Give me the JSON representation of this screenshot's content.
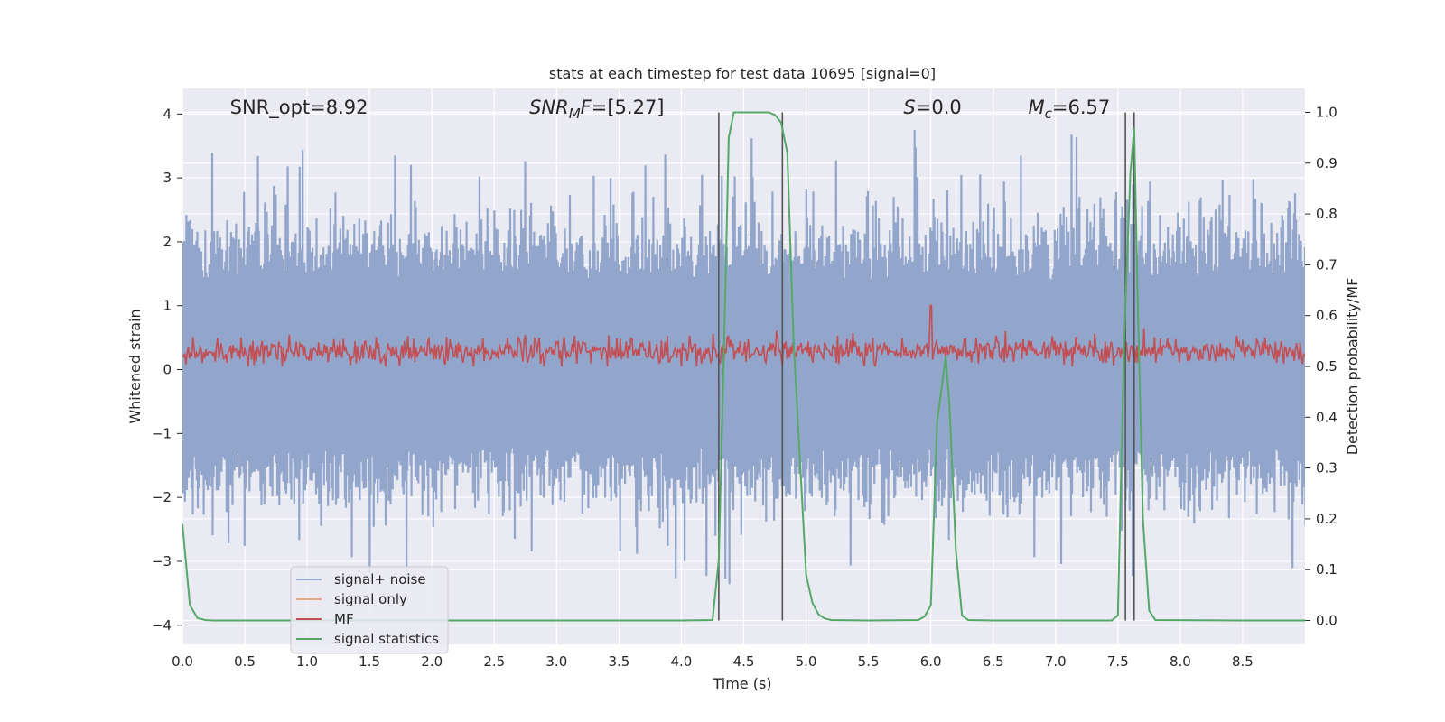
{
  "chart_data": {
    "type": "line",
    "title": "stats at each timestep for test data 10695 [signal=0]",
    "xlabel": "Time (s)",
    "ylabel": "Whitened strain",
    "ylabel_right": "Detection probability/MF",
    "xlim": [
      0,
      9
    ],
    "ylim": [
      -4.3,
      4.4
    ],
    "ylim_right": [
      -0.047,
      1.047
    ],
    "xticks": [
      0.0,
      0.5,
      1.0,
      1.5,
      2.0,
      2.5,
      3.0,
      3.5,
      4.0,
      4.5,
      5.0,
      5.5,
      6.0,
      6.5,
      7.0,
      7.5,
      8.0,
      8.5
    ],
    "xtick_labels": [
      "0.0",
      "0.5",
      "1.0",
      "1.5",
      "2.0",
      "2.5",
      "3.0",
      "3.5",
      "4.0",
      "4.5",
      "5.0",
      "5.5",
      "6.0",
      "6.5",
      "7.0",
      "7.5",
      "8.0",
      "8.5"
    ],
    "yticks": [
      -4,
      -3,
      -2,
      -1,
      0,
      1,
      2,
      3,
      4
    ],
    "ytick_labels": [
      "−4",
      "−3",
      "−2",
      "−1",
      "0",
      "1",
      "2",
      "3",
      "4"
    ],
    "yticks_right": [
      0.0,
      0.1,
      0.2,
      0.3,
      0.4,
      0.5,
      0.6,
      0.7,
      0.8,
      0.9,
      1.0
    ],
    "ytick_labels_right": [
      "0.0",
      "0.1",
      "0.2",
      "0.3",
      "0.4",
      "0.5",
      "0.6",
      "0.7",
      "0.8",
      "0.9",
      "1.0"
    ],
    "grid": true,
    "legend_position": "lower-left",
    "annotations": [
      {
        "text": "SNR_opt=8.92",
        "x": 0.2,
        "y": 4.1
      },
      {
        "text": "SNR_MF=[5.27]",
        "x": 2.6,
        "y": 4.1
      },
      {
        "text": "S=0.0",
        "x": 5.6,
        "y": 4.1
      },
      {
        "text": "M_c=6.57",
        "x": 6.6,
        "y": 4.1
      }
    ],
    "vertical_lines": [
      4.3,
      4.81,
      7.56,
      7.63
    ],
    "series": [
      {
        "name": "signal+ noise",
        "color": "#92a6cc",
        "axis": "left",
        "description": "whitened strain noise, approx. N(0,0.6) with spikes up to about 4 and down to -4"
      },
      {
        "name": "signal only",
        "color": "#e8a888",
        "axis": "left",
        "values": []
      },
      {
        "name": "MF",
        "color": "#c44e52",
        "axis": "right",
        "level": 0.53,
        "spike": {
          "x": 6.0,
          "y": 0.62
        }
      },
      {
        "name": "signal statistics",
        "color": "#55a868",
        "axis": "right",
        "x": [
          0.0,
          0.06,
          0.12,
          0.18,
          0.25,
          0.35,
          0.5,
          1.0,
          2.0,
          3.0,
          4.0,
          4.25,
          4.3,
          4.35,
          4.38,
          4.42,
          4.5,
          4.6,
          4.7,
          4.75,
          4.8,
          4.85,
          4.9,
          5.0,
          5.05,
          5.1,
          5.15,
          5.2,
          5.5,
          5.9,
          5.95,
          6.0,
          6.05,
          6.12,
          6.15,
          6.2,
          6.25,
          6.3,
          6.5,
          7.0,
          7.45,
          7.5,
          7.55,
          7.6,
          7.63,
          7.66,
          7.7,
          7.75,
          7.8,
          8.5,
          9.0
        ],
        "y": [
          0.19,
          0.03,
          0.005,
          0.001,
          0.0,
          0.0,
          0.0,
          0.0,
          0.0,
          0.0,
          0.0,
          0.001,
          0.12,
          0.62,
          0.95,
          1.0,
          1.0,
          1.0,
          1.0,
          0.995,
          0.98,
          0.92,
          0.55,
          0.09,
          0.035,
          0.012,
          0.004,
          0.001,
          0.0,
          0.001,
          0.008,
          0.03,
          0.39,
          0.52,
          0.42,
          0.14,
          0.01,
          0.001,
          0.0,
          0.0,
          0.0,
          0.01,
          0.55,
          0.88,
          0.97,
          0.62,
          0.2,
          0.02,
          0.001,
          0.0,
          0.0
        ]
      }
    ]
  }
}
